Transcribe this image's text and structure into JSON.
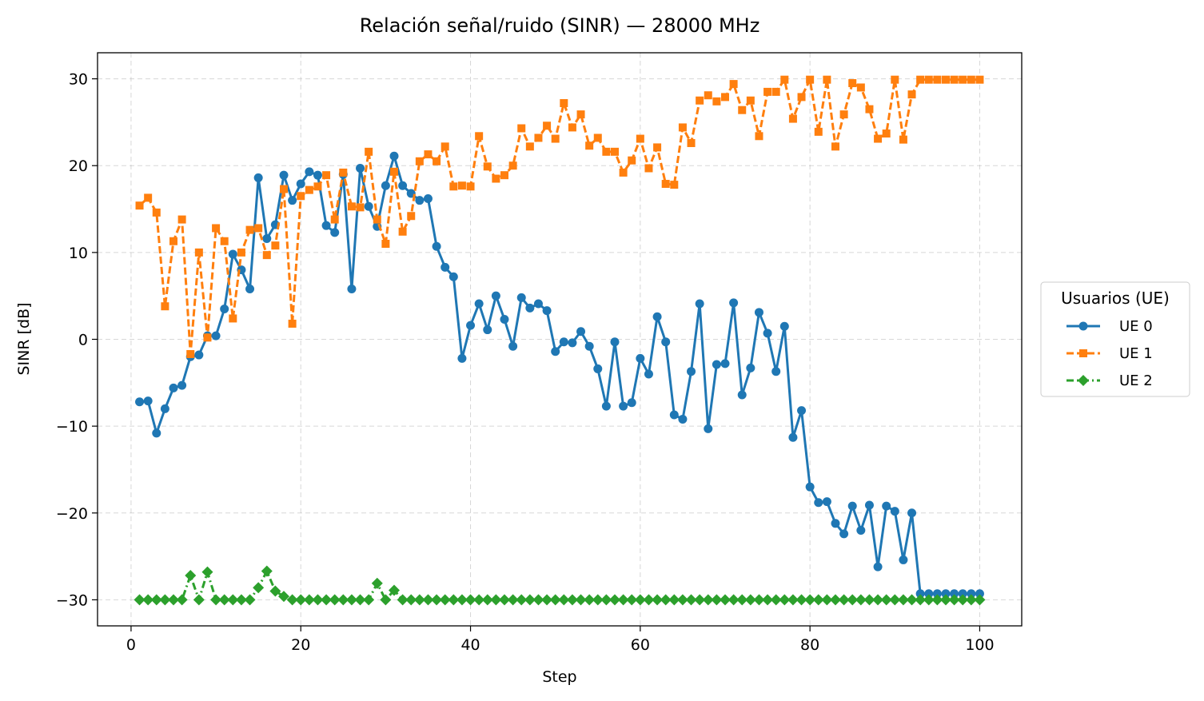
{
  "chart_data": {
    "type": "line",
    "title": "Relación señal/ruido (SINR) — 28000 MHz",
    "xlabel": "Step",
    "ylabel": "SINR [dB]",
    "xlim": [
      -3.95,
      104.95
    ],
    "ylim": [
      -33,
      33
    ],
    "xticks": [
      0,
      20,
      40,
      60,
      80,
      100
    ],
    "yticks": [
      -30,
      -20,
      -10,
      0,
      10,
      20,
      30
    ],
    "xtick_labels": [
      "0",
      "20",
      "40",
      "60",
      "80",
      "100"
    ],
    "ytick_labels": [
      "−30",
      "−20",
      "−10",
      "0",
      "10",
      "20",
      "30"
    ],
    "grid": true,
    "legend": {
      "title": "Usuarios (UE)",
      "placement": "right-outside"
    },
    "x": [
      1,
      2,
      3,
      4,
      5,
      6,
      7,
      8,
      9,
      10,
      11,
      12,
      13,
      14,
      15,
      16,
      17,
      18,
      19,
      20,
      21,
      22,
      23,
      24,
      25,
      26,
      27,
      28,
      29,
      30,
      31,
      32,
      33,
      34,
      35,
      36,
      37,
      38,
      39,
      40,
      41,
      42,
      43,
      44,
      45,
      46,
      47,
      48,
      49,
      50,
      51,
      52,
      53,
      54,
      55,
      56,
      57,
      58,
      59,
      60,
      61,
      62,
      63,
      64,
      65,
      66,
      67,
      68,
      69,
      70,
      71,
      72,
      73,
      74,
      75,
      76,
      77,
      78,
      79,
      80,
      81,
      82,
      83,
      84,
      85,
      86,
      87,
      88,
      89,
      90,
      91,
      92,
      93,
      94,
      95,
      96,
      97,
      98,
      99,
      100
    ],
    "series": [
      {
        "name": "UE 0",
        "color": "#1f77b4",
        "marker": "circle",
        "linestyle": "solid",
        "values": [
          -7.2,
          -7.1,
          -10.8,
          -8.0,
          -5.6,
          -5.3,
          -2.0,
          -1.8,
          0.4,
          0.4,
          3.5,
          9.8,
          8.0,
          5.8,
          18.6,
          11.6,
          13.2,
          18.9,
          16.0,
          17.9,
          19.3,
          18.9,
          13.1,
          12.3,
          19.0,
          5.8,
          19.7,
          15.3,
          13.0,
          17.7,
          21.1,
          17.7,
          16.8,
          16.0,
          16.2,
          10.7,
          8.3,
          7.2,
          -2.2,
          1.6,
          4.1,
          1.1,
          5.0,
          2.3,
          -0.8,
          4.8,
          3.6,
          4.1,
          3.3,
          -1.4,
          -0.3,
          -0.4,
          0.9,
          -0.8,
          -3.4,
          -7.7,
          -0.3,
          -7.7,
          -7.3,
          -2.2,
          -4.0,
          2.6,
          -0.3,
          -8.7,
          -9.2,
          -3.7,
          4.1,
          -10.3,
          -2.9,
          -2.8,
          4.2,
          -6.4,
          -3.3,
          3.1,
          0.7,
          -3.7,
          1.5,
          -11.3,
          -8.2,
          -17.0,
          -18.8,
          -18.7,
          -21.2,
          -22.4,
          -19.2,
          -22.0,
          -19.1,
          -26.2,
          -19.2,
          -19.8,
          -25.4,
          -20.0,
          -29.3,
          -29.3,
          -29.3,
          -29.3,
          -29.3,
          -29.3,
          -29.3,
          -29.3
        ]
      },
      {
        "name": "UE 1",
        "color": "#ff7f0e",
        "marker": "square",
        "linestyle": "dashed",
        "values": [
          15.4,
          16.3,
          14.6,
          3.8,
          11.3,
          13.8,
          -1.7,
          10.0,
          0.2,
          12.8,
          11.3,
          2.4,
          10.0,
          12.6,
          12.8,
          9.7,
          10.8,
          17.3,
          1.8,
          16.5,
          17.2,
          17.6,
          18.9,
          13.8,
          19.2,
          15.3,
          15.2,
          21.6,
          13.8,
          11.0,
          19.3,
          12.4,
          14.2,
          20.5,
          21.3,
          20.5,
          22.2,
          17.6,
          17.7,
          17.6,
          23.4,
          19.9,
          18.5,
          18.9,
          20.0,
          24.3,
          22.2,
          23.2,
          24.6,
          23.1,
          27.2,
          24.4,
          25.9,
          22.3,
          23.2,
          21.6,
          21.6,
          19.2,
          20.6,
          23.1,
          19.7,
          22.1,
          17.9,
          17.8,
          24.4,
          22.6,
          27.5,
          28.1,
          27.4,
          27.9,
          29.4,
          26.4,
          27.5,
          23.4,
          28.5,
          28.5,
          29.9,
          25.4,
          27.9,
          29.9,
          23.9,
          29.9,
          22.2,
          25.9,
          29.5,
          29.0,
          26.5,
          23.1,
          23.7,
          29.9,
          23.0,
          28.2,
          29.9,
          29.9,
          29.9,
          29.9,
          29.9,
          29.9,
          29.9,
          29.9
        ]
      },
      {
        "name": "UE 2",
        "color": "#2ca02c",
        "marker": "diamond",
        "linestyle": "dashdot",
        "values": [
          -30,
          -30,
          -30,
          -30,
          -30,
          -30,
          -27.2,
          -30,
          -26.8,
          -30,
          -30,
          -30,
          -30,
          -30,
          -28.6,
          -26.7,
          -29.0,
          -29.6,
          -30,
          -30,
          -30,
          -30,
          -30,
          -30,
          -30,
          -30,
          -30,
          -30,
          -28.1,
          -30,
          -28.9,
          -30,
          -30,
          -30,
          -30,
          -30,
          -30,
          -30,
          -30,
          -30,
          -30,
          -30,
          -30,
          -30,
          -30,
          -30,
          -30,
          -30,
          -30,
          -30,
          -30,
          -30,
          -30,
          -30,
          -30,
          -30,
          -30,
          -30,
          -30,
          -30,
          -30,
          -30,
          -30,
          -30,
          -30,
          -30,
          -30,
          -30,
          -30,
          -30,
          -30,
          -30,
          -30,
          -30,
          -30,
          -30,
          -30,
          -30,
          -30,
          -30,
          -30,
          -30,
          -30,
          -30,
          -30,
          -30,
          -30,
          -30,
          -30,
          -30,
          -30,
          -30,
          -30,
          -30,
          -30,
          -30,
          -30,
          -30,
          -30,
          -30
        ]
      }
    ]
  }
}
